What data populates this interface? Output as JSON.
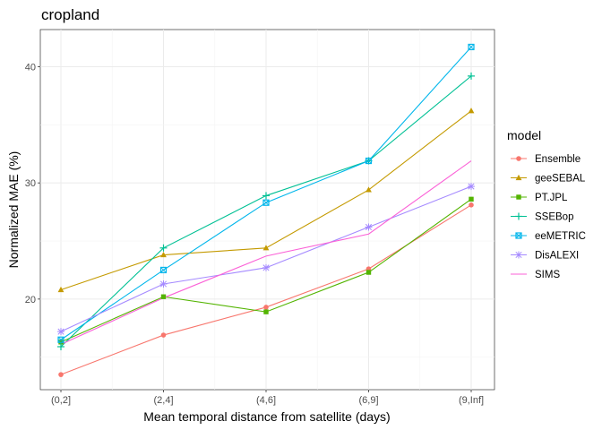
{
  "chart_data": {
    "type": "line",
    "title": "cropland",
    "xlabel": "Mean temporal distance from satellite (days)",
    "ylabel": "Normalized MAE (%)",
    "categories": [
      "(0,2]",
      "(2,4]",
      "(4,6]",
      "(6,9]",
      "(9,Inf]"
    ],
    "ylim": [
      12.2,
      43.2
    ],
    "yticks": [
      20,
      30,
      40
    ],
    "grid": true,
    "legend": {
      "title": "model",
      "position": "right"
    },
    "series": [
      {
        "name": "Ensemble",
        "color": "#F8766D",
        "marker": "circle",
        "values": [
          13.5,
          16.9,
          19.3,
          22.6,
          28.1
        ]
      },
      {
        "name": "geeSEBAL",
        "color": "#C49A00",
        "marker": "triangle",
        "values": [
          20.8,
          23.8,
          24.4,
          29.4,
          36.2
        ]
      },
      {
        "name": "PT.JPL",
        "color": "#53B400",
        "marker": "square",
        "values": [
          16.3,
          20.2,
          18.9,
          22.3,
          28.6
        ]
      },
      {
        "name": "SSEBop",
        "color": "#00C094",
        "marker": "plus",
        "values": [
          15.9,
          24.4,
          28.9,
          31.9,
          39.2
        ]
      },
      {
        "name": "eeMETRIC",
        "color": "#00B6EB",
        "marker": "boxx",
        "values": [
          16.5,
          22.5,
          28.3,
          31.9,
          41.7
        ]
      },
      {
        "name": "DisALEXI",
        "color": "#A58AFF",
        "marker": "star",
        "values": [
          17.2,
          21.3,
          22.7,
          26.2,
          29.7
        ]
      },
      {
        "name": "SIMS",
        "color": "#FB61D7",
        "marker": "none",
        "values": [
          16.1,
          20.1,
          23.7,
          25.6,
          31.9
        ]
      }
    ]
  }
}
